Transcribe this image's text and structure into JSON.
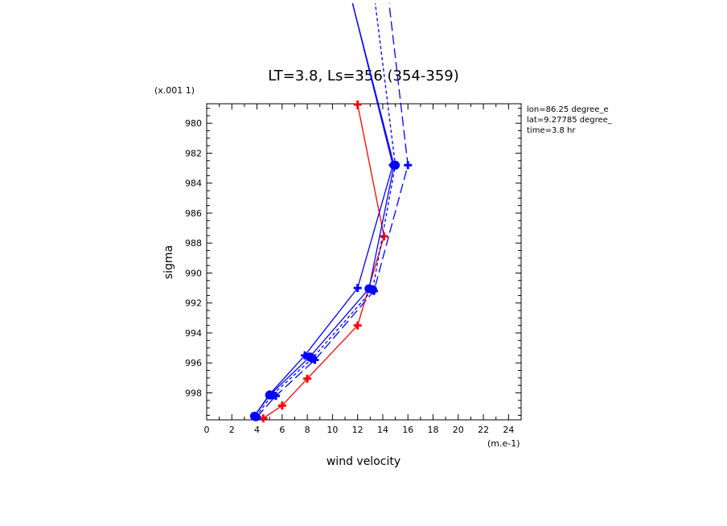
{
  "chart_data": {
    "type": "line",
    "title": "LT=3.8, Ls=356 (354-359)",
    "xlabel": "wind velocity",
    "ylabel": "sigma",
    "x_unit": "(m.e-1)",
    "y_unit": "(x.001 1)",
    "xlim": [
      0,
      25
    ],
    "ylim": [
      999.8,
      978.7
    ],
    "y_inverted": true,
    "x_ticks": [
      0,
      2,
      4,
      6,
      8,
      10,
      12,
      14,
      16,
      18,
      20,
      22,
      24
    ],
    "y_ticks": [
      980,
      982,
      984,
      986,
      988,
      990,
      992,
      994,
      996,
      998
    ],
    "info": [
      "lon=86.25 degree_e",
      "lat=9.27785 degree_",
      "time=3.8 hr"
    ],
    "grid": false,
    "series": [
      {
        "color": "#ff0000",
        "style": "solid",
        "marker": "cross",
        "x": [
          4.5,
          6.0,
          8.0,
          12.0,
          14.1,
          12.0
        ],
        "y": [
          999.7,
          998.85,
          997.05,
          993.5,
          987.55,
          978.75
        ]
      },
      {
        "color": "#0000ff",
        "style": "solid",
        "marker": "dot",
        "x": [
          3.8,
          5.0,
          8.2,
          12.9,
          14.9,
          11.6
        ],
        "y": [
          999.55,
          998.15,
          995.6,
          991.05,
          982.8,
          972.0
        ]
      },
      {
        "color": "#0000ff",
        "style": "short-dash",
        "marker": "dot",
        "x": [
          3.9,
          5.2,
          8.4,
          13.2,
          15.0,
          13.4
        ],
        "y": [
          999.6,
          998.15,
          995.7,
          991.1,
          982.8,
          972.0
        ]
      },
      {
        "color": "#0000ff",
        "style": "long-dash",
        "marker": "cross",
        "x": [
          4.0,
          5.5,
          8.6,
          13.3,
          16.0,
          14.5
        ],
        "y": [
          999.6,
          998.2,
          995.8,
          991.2,
          982.8,
          972.0
        ]
      },
      {
        "color": "#0000ff",
        "style": "solid",
        "marker": "cross",
        "x": [
          3.8,
          5.0,
          7.8,
          12.0,
          14.8,
          11.6
        ],
        "y": [
          999.55,
          998.1,
          995.5,
          991.0,
          982.8,
          972.0
        ]
      }
    ]
  }
}
